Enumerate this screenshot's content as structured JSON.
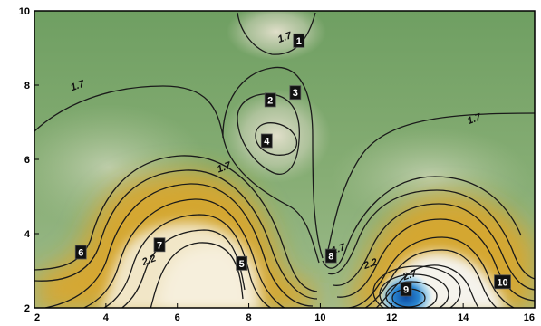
{
  "chart_data": {
    "type": "heatmap",
    "subtype": "filled contour map",
    "title": "",
    "xlabel": "",
    "ylabel": "",
    "xlim": [
      2,
      16
    ],
    "ylim": [
      2,
      10
    ],
    "x_ticks": [
      2,
      4,
      6,
      8,
      10,
      12,
      14,
      16
    ],
    "y_ticks": [
      2,
      4,
      6,
      8,
      10
    ],
    "grid": false,
    "legend": "none",
    "colormap": {
      "low": "#6a9a5e",
      "mid_low": "#cdd2b8",
      "mid": "#e3b42a",
      "high": "#f7f0e0",
      "peak": "#1463b3"
    },
    "contour_labels": [
      {
        "text": "1.7",
        "x": 3.2,
        "y": 8.0
      },
      {
        "text": "1.7",
        "x": 9.0,
        "y": 9.3
      },
      {
        "text": "1.7",
        "x": 7.3,
        "y": 5.8
      },
      {
        "text": "1.7",
        "x": 14.3,
        "y": 7.1
      },
      {
        "text": "1.7",
        "x": 10.5,
        "y": 3.6
      },
      {
        "text": "2.2",
        "x": 5.2,
        "y": 3.3
      },
      {
        "text": "2.2",
        "x": 11.4,
        "y": 3.2
      },
      {
        "text": "2.7",
        "x": 12.5,
        "y": 2.9
      }
    ],
    "markers": [
      {
        "label": "1",
        "x": 9.4,
        "y": 9.2
      },
      {
        "label": "2",
        "x": 8.6,
        "y": 7.6
      },
      {
        "label": "3",
        "x": 9.3,
        "y": 7.8
      },
      {
        "label": "4",
        "x": 8.5,
        "y": 6.5
      },
      {
        "label": "5",
        "x": 7.8,
        "y": 3.2
      },
      {
        "label": "6",
        "x": 3.3,
        "y": 3.5
      },
      {
        "label": "7",
        "x": 5.5,
        "y": 3.7
      },
      {
        "label": "8",
        "x": 10.3,
        "y": 3.4
      },
      {
        "label": "9",
        "x": 12.4,
        "y": 2.5
      },
      {
        "label": "10",
        "x": 15.1,
        "y": 2.7
      }
    ]
  }
}
